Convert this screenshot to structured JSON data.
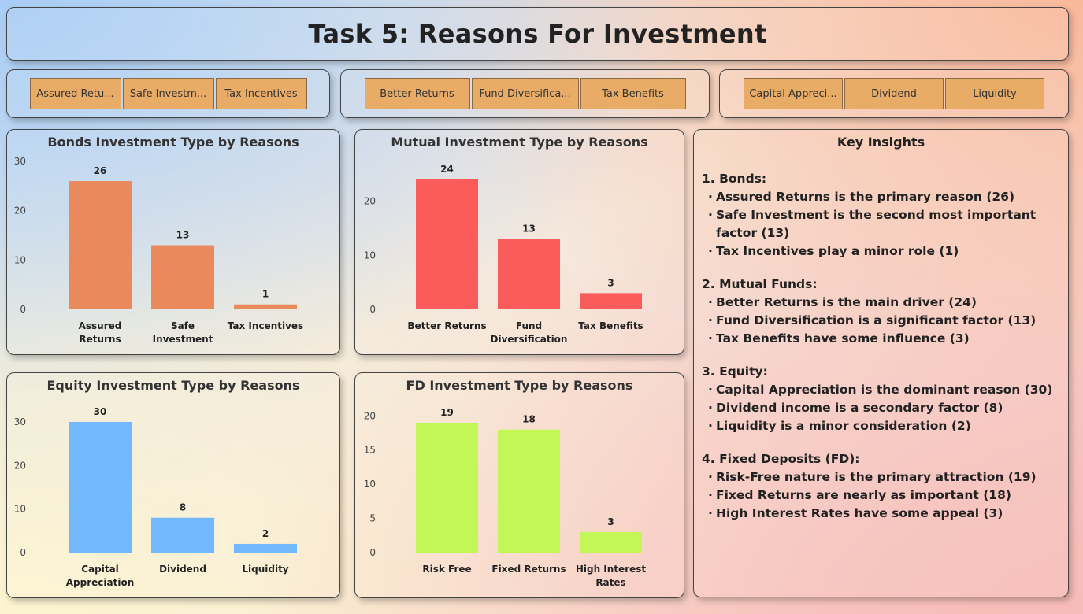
{
  "title": "Task 5: Reasons For Investment",
  "slicers": [
    {
      "buttons": [
        "Assured Returns",
        "Safe Investment",
        "Tax Incentives"
      ]
    },
    {
      "buttons": [
        "Better Returns",
        "Fund Diversification",
        "Tax Benefits"
      ]
    },
    {
      "buttons": [
        "Capital Appreciation",
        "Dividend",
        "Liquidity"
      ]
    }
  ],
  "slicer_display": [
    [
      "Assured Retu...",
      "Safe Investm...",
      "Tax Incentives"
    ],
    [
      "Better Returns",
      "Fund Diversifica...",
      "Tax Benefits"
    ],
    [
      "Capital Appreci...",
      "Dividend",
      "Liquidity"
    ]
  ],
  "chart_data": [
    {
      "type": "bar",
      "title": "Bonds Investment Type by Reasons",
      "categories": [
        "Assured Returns",
        "Safe Investment",
        "Tax Incentives"
      ],
      "category_lines": [
        [
          "Assured",
          "Returns"
        ],
        [
          "Safe",
          "Investment"
        ],
        [
          "Tax Incentives"
        ]
      ],
      "values": [
        26,
        13,
        1
      ],
      "ylim": [
        0,
        30
      ],
      "yticks": [
        0,
        10,
        20,
        30
      ],
      "color": "#ea8a5c",
      "xlabel": "",
      "ylabel": ""
    },
    {
      "type": "bar",
      "title": "Mutual Investment Type by Reasons",
      "categories": [
        "Better Returns",
        "Fund Diversification",
        "Tax Benefits"
      ],
      "category_lines": [
        [
          "Better Returns"
        ],
        [
          "Fund",
          "Diversification"
        ],
        [
          "Tax Benefits"
        ]
      ],
      "values": [
        24,
        13,
        3
      ],
      "ylim": [
        0,
        24
      ],
      "yticks": [
        0,
        10,
        20
      ],
      "color": "#fa5b5b",
      "xlabel": "",
      "ylabel": ""
    },
    {
      "type": "bar",
      "title": "Equity Investment Type by Reasons",
      "categories": [
        "Capital Appreciation",
        "Dividend",
        "Liquidity"
      ],
      "category_lines": [
        [
          "Capital",
          "Appreciation"
        ],
        [
          "Dividend"
        ],
        [
          "Liquidity"
        ]
      ],
      "values": [
        30,
        8,
        2
      ],
      "ylim": [
        0,
        30
      ],
      "yticks": [
        0,
        10,
        20,
        30
      ],
      "color": "#71b8fd",
      "xlabel": "",
      "ylabel": ""
    },
    {
      "type": "bar",
      "title": "FD Investment Type by Reasons",
      "categories": [
        "Risk Free",
        "Fixed Returns",
        "High Interest Rates"
      ],
      "category_lines": [
        [
          "Risk Free"
        ],
        [
          "Fixed Returns"
        ],
        [
          "High Interest",
          "Rates"
        ]
      ],
      "values": [
        19,
        18,
        3
      ],
      "ylim": [
        0,
        19
      ],
      "yticks": [
        0,
        5,
        10,
        15,
        20
      ],
      "color": "#c3f757",
      "xlabel": "",
      "ylabel": ""
    }
  ],
  "insights": {
    "title": "Key Insights",
    "sections": [
      {
        "heading": "1. Bonds:",
        "items": [
          "Assured Returns is the primary reason (26)",
          "Safe Investment is the second most important factor (13)",
          "Tax Incentives play a minor role (1)"
        ]
      },
      {
        "heading": "2. Mutual Funds:",
        "items": [
          "Better Returns is the main driver (24)",
          "Fund Diversification is a significant factor (13)",
          "Tax Benefits have some influence (3)"
        ]
      },
      {
        "heading": "3. Equity:",
        "items": [
          "Capital Appreciation is the dominant reason (30)",
          "Dividend income is a secondary factor (8)",
          "Liquidity is a minor consideration (2)"
        ]
      },
      {
        "heading": "4. Fixed Deposits (FD):",
        "items": [
          "Risk-Free nature is the primary attraction (19)",
          "Fixed Returns are nearly as important (18)",
          "High Interest Rates have some appeal (3)"
        ]
      }
    ]
  }
}
